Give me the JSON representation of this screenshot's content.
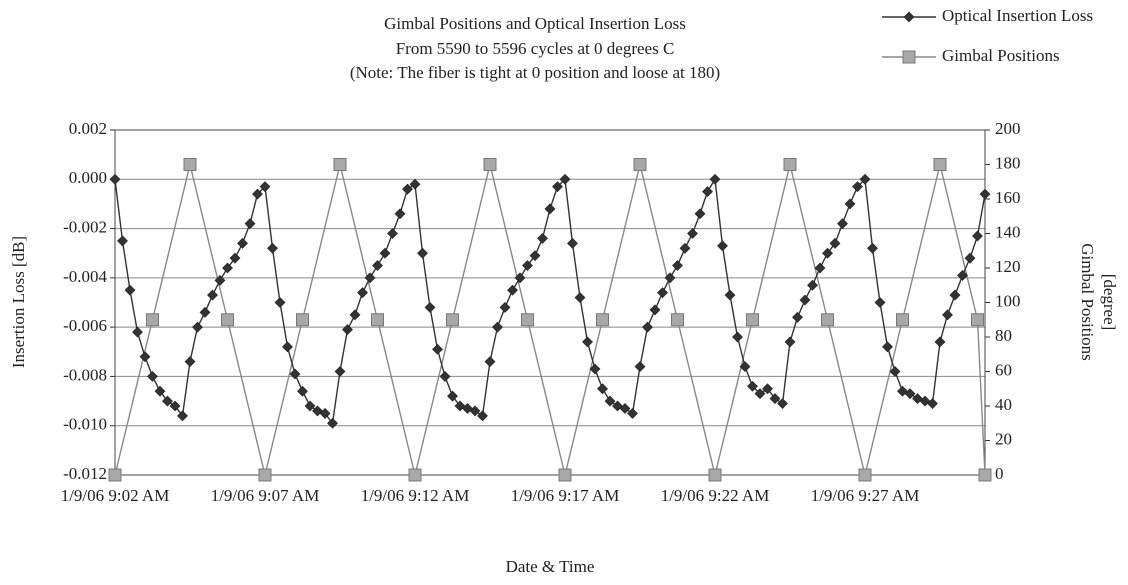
{
  "chart_data": {
    "type": "line",
    "title": [
      "Gimbal Positions and Optical Insertion Loss",
      "From 5590 to 5596 cycles at 0 degrees C",
      "(Note: The fiber is tight at 0 position and loose at 180)"
    ],
    "xlabel": "Date & Time",
    "ylabel": "Insertion Loss [dB]",
    "y2label": [
      "Gimbal Positions",
      "[degree]"
    ],
    "xlim": [
      542,
      571
    ],
    "xticks": [
      {
        "value": 542,
        "label": "1/9/06 9:02 AM"
      },
      {
        "value": 547,
        "label": "1/9/06 9:07 AM"
      },
      {
        "value": 552,
        "label": "1/9/06 9:12 AM"
      },
      {
        "value": 557,
        "label": "1/9/06 9:17 AM"
      },
      {
        "value": 562,
        "label": "1/9/06 9:22 AM"
      },
      {
        "value": 567,
        "label": "1/9/06 9:27 AM"
      }
    ],
    "ylim": [
      -0.012,
      0.002
    ],
    "yticks": [
      -0.012,
      {
        "value": -0.01,
        "label": "-0.010"
      },
      -0.008,
      -0.006,
      -0.004,
      -0.002,
      {
        "value": 0,
        "label": "0.000"
      },
      0.002
    ],
    "y2lim": [
      0,
      200
    ],
    "y2ticks": [
      0,
      20,
      40,
      60,
      80,
      100,
      120,
      140,
      160,
      180,
      200
    ],
    "grid": true,
    "legend": "top-right",
    "series": [
      {
        "name": "Optical Insertion Loss",
        "color": "#333333",
        "marker": "diamond",
        "x": [
          542,
          542.25,
          542.5,
          542.75,
          543,
          543.25,
          543.5,
          543.75,
          544,
          544.25,
          544.5,
          544.75,
          545,
          545.25,
          545.5,
          545.75,
          546,
          546.25,
          546.5,
          546.75,
          547,
          547.25,
          547.5,
          547.75,
          548,
          548.25,
          548.5,
          548.75,
          549,
          549.25,
          549.5,
          549.75,
          550,
          550.25,
          550.5,
          550.75,
          551,
          551.25,
          551.5,
          551.75,
          552,
          552.25,
          552.5,
          552.75,
          553,
          553.25,
          553.5,
          553.75,
          554,
          554.25,
          554.5,
          554.75,
          555,
          555.25,
          555.5,
          555.75,
          556,
          556.25,
          556.5,
          556.75,
          557,
          557.25,
          557.5,
          557.75,
          558,
          558.25,
          558.5,
          558.75,
          559,
          559.25,
          559.5,
          559.75,
          560,
          560.25,
          560.5,
          560.75,
          561,
          561.25,
          561.5,
          561.75,
          562,
          562.25,
          562.5,
          562.75,
          563,
          563.25,
          563.5,
          563.75,
          564,
          564.25,
          564.5,
          564.75,
          565,
          565.25,
          565.5,
          565.75,
          566,
          566.25,
          566.5,
          566.75,
          567,
          567.25,
          567.5,
          567.75,
          568,
          568.25,
          568.5,
          568.75,
          569,
          569.25,
          569.5,
          569.75,
          570,
          570.25,
          570.5,
          570.75,
          571
        ],
        "values": [
          0,
          -0.0025,
          -0.0045,
          -0.0062,
          -0.0072,
          -0.008,
          -0.0086,
          -0.009,
          -0.0092,
          -0.0096,
          -0.0074,
          -0.006,
          -0.0054,
          -0.0047,
          -0.0041,
          -0.0036,
          -0.0032,
          -0.0026,
          -0.0018,
          -0.0006,
          -0.0003,
          -0.0028,
          -0.005,
          -0.0068,
          -0.0079,
          -0.0086,
          -0.0092,
          -0.0094,
          -0.0095,
          -0.0099,
          -0.0078,
          -0.0061,
          -0.0055,
          -0.0046,
          -0.004,
          -0.0035,
          -0.003,
          -0.0022,
          -0.0014,
          -0.0004,
          -0.0002,
          -0.003,
          -0.0052,
          -0.0069,
          -0.008,
          -0.0088,
          -0.0092,
          -0.0093,
          -0.0094,
          -0.0096,
          -0.0074,
          -0.006,
          -0.0052,
          -0.0045,
          -0.004,
          -0.0035,
          -0.0031,
          -0.0024,
          -0.0012,
          -0.0003,
          0,
          -0.0026,
          -0.0048,
          -0.0066,
          -0.0077,
          -0.0085,
          -0.009,
          -0.0092,
          -0.0093,
          -0.0095,
          -0.0076,
          -0.006,
          -0.0053,
          -0.0046,
          -0.004,
          -0.0035,
          -0.0028,
          -0.0022,
          -0.0014,
          -0.0005,
          0,
          -0.0027,
          -0.0047,
          -0.0064,
          -0.0076,
          -0.0084,
          -0.0087,
          -0.0085,
          -0.0089,
          -0.0091,
          -0.0066,
          -0.0056,
          -0.0049,
          -0.0043,
          -0.0036,
          -0.003,
          -0.0026,
          -0.0018,
          -0.001,
          -0.0003,
          0,
          -0.0028,
          -0.005,
          -0.0068,
          -0.0078,
          -0.0086,
          -0.0087,
          -0.0089,
          -0.009,
          -0.0091,
          -0.0066,
          -0.0055,
          -0.0047,
          -0.0039,
          -0.0032,
          -0.0023,
          -0.0006
        ]
      },
      {
        "name": "Gimbal Positions",
        "color": "#a8a8a8",
        "marker": "square",
        "axis": "y2",
        "x": [
          542,
          543.25,
          544.5,
          545.75,
          547,
          548.25,
          549.5,
          550.75,
          552,
          553.25,
          554.5,
          555.75,
          557,
          558.25,
          559.5,
          560.75,
          562,
          563.25,
          564.5,
          565.75,
          567,
          568.25,
          569.5,
          570.75,
          571
        ],
        "values": [
          0,
          90,
          180,
          90,
          0,
          90,
          180,
          90,
          0,
          90,
          180,
          90,
          0,
          90,
          180,
          90,
          0,
          90,
          180,
          90,
          0,
          90,
          180,
          90,
          0
        ]
      }
    ]
  }
}
